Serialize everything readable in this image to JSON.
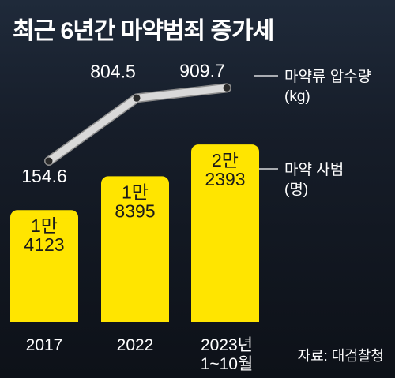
{
  "title": "최근 6년간 마약범죄 증가세",
  "source": "자료: 대검찰청",
  "colors": {
    "bar": "#ffe500",
    "line": "#d9d9d9",
    "background": "#161d29",
    "text": "#ffffff",
    "bar_text": "#1a1a1a"
  },
  "chart_data": {
    "type": "bar",
    "categories": [
      "2017",
      "2022",
      "2023년 1~10월"
    ],
    "category_lines": [
      [
        "2017"
      ],
      [
        "2022"
      ],
      [
        "2023년",
        "1~10월"
      ]
    ],
    "series": [
      {
        "name": "마약 사범 (명)",
        "type": "bar",
        "values": [
          14123,
          18395,
          22393
        ],
        "labels": [
          [
            "1만",
            "4123"
          ],
          [
            "1만",
            "8395"
          ],
          [
            "2만",
            "2393"
          ]
        ]
      },
      {
        "name": "마약류 압수량 (kg)",
        "type": "line",
        "values": [
          154.6,
          804.5,
          909.7
        ],
        "labels": [
          "154.6",
          "804.5",
          "909.7"
        ]
      }
    ],
    "legend": [
      {
        "series": "line",
        "lines": [
          "마약류 압수량",
          "(kg)"
        ]
      },
      {
        "series": "bar",
        "lines": [
          "마약 사범",
          "(명)"
        ]
      }
    ],
    "grid": false,
    "title": "최근 6년간 마약범죄 증가세"
  }
}
